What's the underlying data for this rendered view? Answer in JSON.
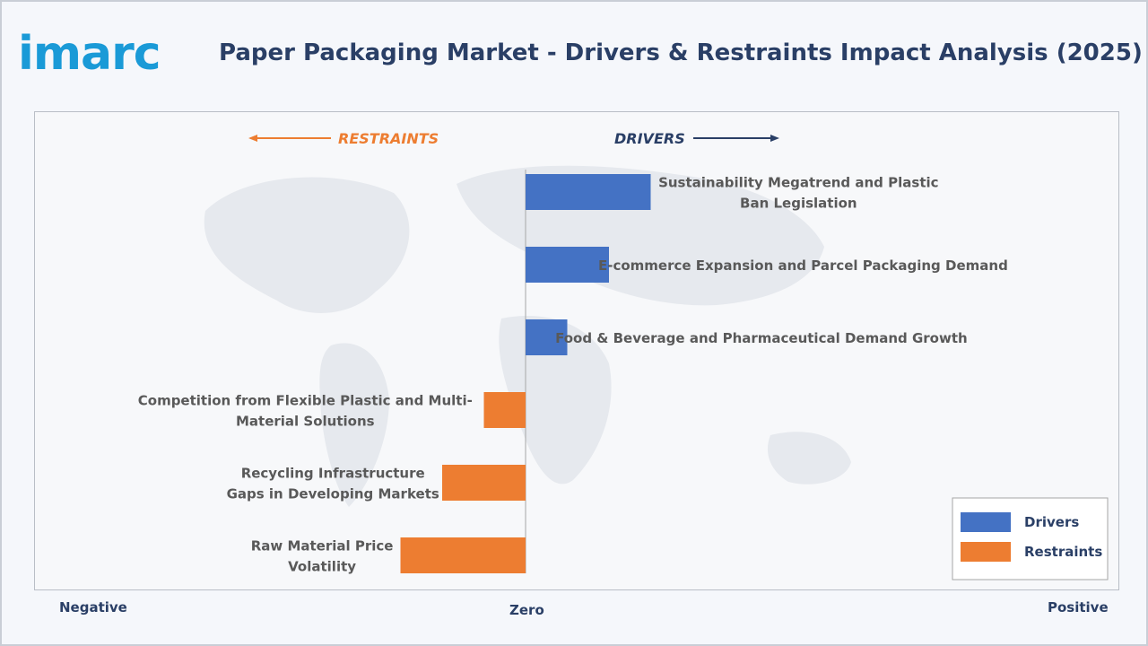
{
  "brand": {
    "logo_text": "imarc"
  },
  "title": "Paper Packaging Market - Drivers & Restraints Impact Analysis (2025)",
  "colors": {
    "drivers": "#4472c4",
    "restraints": "#ed7d31",
    "title": "#2a3f66",
    "label": "#595959"
  },
  "axis_labels": {
    "negative": "Negative",
    "zero": "Zero",
    "positive": "Positive"
  },
  "headers": {
    "restraints": "RESTRAINTS",
    "drivers": "DRIVERS"
  },
  "chart_data": {
    "type": "bar",
    "orientation": "horizontal",
    "categories": [
      [
        "Sustainability Megatrend and Plastic",
        "Ban Legislation"
      ],
      [
        "E-commerce Expansion and Parcel Packaging Demand"
      ],
      [
        "Food & Beverage and Pharmaceutical Demand Growth"
      ],
      [
        "Competition from Flexible Plastic and Multi-",
        "Material Solutions"
      ],
      [
        "Recycling Infrastructure",
        "Gaps in Developing Markets"
      ],
      [
        "Raw Material Price",
        "Volatility"
      ]
    ],
    "series": [
      {
        "name": "Drivers",
        "values": [
          3,
          2,
          1,
          null,
          null,
          null
        ]
      },
      {
        "name": "Restraints",
        "values": [
          null,
          null,
          null,
          -1,
          -2,
          -3
        ]
      }
    ],
    "xlim": [
      -5.9,
      5.9
    ],
    "legend": {
      "position": "bottom-right",
      "entries": [
        "Drivers",
        "Restraints"
      ]
    }
  }
}
